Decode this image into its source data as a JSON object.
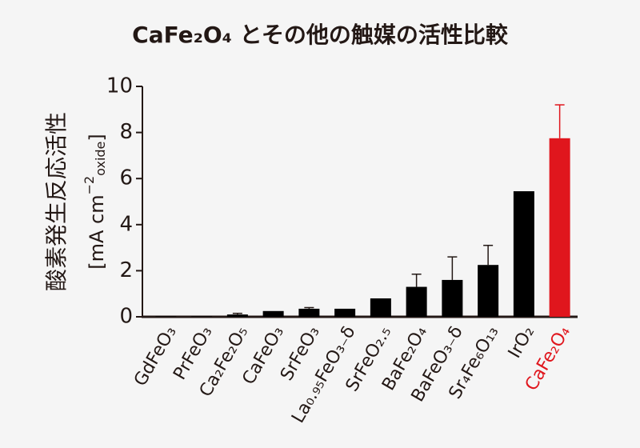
{
  "chart_data": {
    "type": "bar",
    "title": "CaFe₂O₄ とその他の触媒の活性比較",
    "ylabel": "酸素発生反応活性",
    "yunit": [
      "[mA cm",
      "−2",
      "oxide",
      "]"
    ],
    "categories": [
      "GdFeO₃",
      "PrFeO₃",
      "Ca₂Fe₂O₅",
      "CaFeO₃",
      "SrFeO₃",
      "La₀.₉₅FeO₃₋δ",
      "SrFeO₂.₅",
      "BaFe₂O₄",
      "BaFeO₃₋δ",
      "Sr₄Fe₆O₁₃",
      "IrO₂",
      "CaFe₂O₄"
    ],
    "values": [
      0.02,
      0.02,
      0.1,
      0.25,
      0.35,
      0.35,
      0.8,
      1.3,
      1.6,
      2.25,
      5.45,
      7.75
    ],
    "errors": [
      null,
      null,
      0.05,
      null,
      0.05,
      null,
      null,
      0.55,
      1.0,
      0.85,
      null,
      1.45
    ],
    "colors": [
      "#000000",
      "#000000",
      "#000000",
      "#000000",
      "#000000",
      "#000000",
      "#000000",
      "#000000",
      "#000000",
      "#000000",
      "#000000",
      "#e0161d"
    ],
    "ylim": [
      0,
      10
    ],
    "yticks": [
      0,
      2,
      4,
      6,
      8,
      10
    ]
  }
}
